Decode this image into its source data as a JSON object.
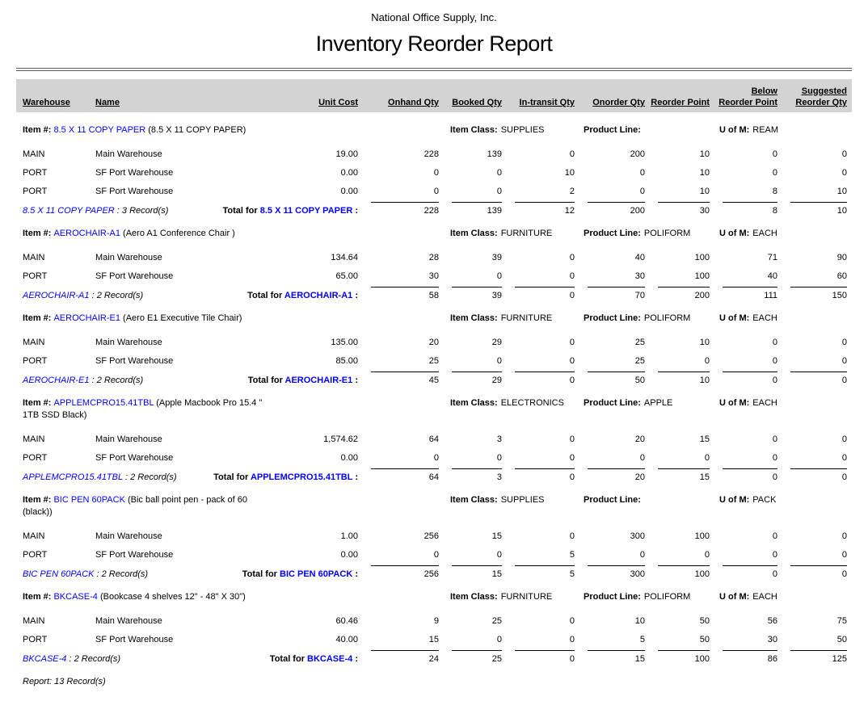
{
  "page": {
    "company": "National Office Supply, Inc.",
    "title": "Inventory Reorder Report",
    "footer": "Report: 13 Record(s)"
  },
  "labels": {
    "item": "Item #:",
    "item_class": "Item Class:",
    "product_line": "Product Line:",
    "uom": "U of M:",
    "total_prefix": "Total for ",
    "total_suffix": " :"
  },
  "colors": {
    "item_code_blue": "#0000FF",
    "header_band_gray": "#d3d3d3"
  },
  "columns": {
    "warehouse": "Warehouse",
    "name": "Name",
    "unit_cost": "Unit Cost",
    "onhand": "Onhand Qty",
    "booked": "Booked Qty",
    "intransit": "In-transit Qty",
    "onorder": "Onorder Qty",
    "reorder": "Reorder Point",
    "below1": "Below",
    "below2": "Reorder Point",
    "suggested1": "Suggested",
    "suggested2": "Reorder Qty"
  },
  "groups": [
    {
      "code": "8.5 X 11 COPY PAPER",
      "desc1": " (8.5 X 11 COPY PAPER)",
      "desc2": "",
      "item_class": "SUPPLIES",
      "product_line": "",
      "uom": "REAM",
      "rows": [
        {
          "wh": "MAIN",
          "name": "Main Warehouse",
          "cost": "19.00",
          "c": [
            "228",
            "139",
            "0",
            "200",
            "10",
            "0",
            "0"
          ]
        },
        {
          "wh": "PORT",
          "name": "SF Port Warehouse",
          "cost": "0.00",
          "c": [
            "0",
            "0",
            "10",
            "0",
            "10",
            "0",
            "0"
          ]
        },
        {
          "wh": "PORT",
          "name": "SF Port Warehouse",
          "cost": "0.00",
          "c": [
            "0",
            "0",
            "2",
            "0",
            "10",
            "8",
            "10"
          ]
        }
      ],
      "records": " : 3 Record(s)",
      "totals": [
        "228",
        "139",
        "12",
        "200",
        "30",
        "8",
        "10"
      ]
    },
    {
      "code": "AEROCHAIR-A1",
      "desc1": " (Aero A1 Conference Chair )",
      "desc2": "",
      "item_class": "FURNITURE",
      "product_line": "POLIFORM",
      "uom": "EACH",
      "rows": [
        {
          "wh": "MAIN",
          "name": "Main Warehouse",
          "cost": "134.64",
          "c": [
            "28",
            "39",
            "0",
            "40",
            "100",
            "71",
            "90"
          ]
        },
        {
          "wh": "PORT",
          "name": "SF Port Warehouse",
          "cost": "65.00",
          "c": [
            "30",
            "0",
            "0",
            "30",
            "100",
            "40",
            "60"
          ]
        }
      ],
      "records": " : 2 Record(s)",
      "totals": [
        "58",
        "39",
        "0",
        "70",
        "200",
        "111",
        "150"
      ]
    },
    {
      "code": "AEROCHAIR-E1",
      "desc1": " (Aero E1 Executive Tile Chair)",
      "desc2": "",
      "item_class": "FURNITURE",
      "product_line": "POLIFORM",
      "uom": "EACH",
      "rows": [
        {
          "wh": "MAIN",
          "name": "Main Warehouse",
          "cost": "135.00",
          "c": [
            "20",
            "29",
            "0",
            "25",
            "10",
            "0",
            "0"
          ]
        },
        {
          "wh": "PORT",
          "name": "SF Port Warehouse",
          "cost": "85.00",
          "c": [
            "25",
            "0",
            "0",
            "25",
            "0",
            "0",
            "0"
          ]
        }
      ],
      "records": " : 2 Record(s)",
      "totals": [
        "45",
        "29",
        "0",
        "50",
        "10",
        "0",
        "0"
      ]
    },
    {
      "code": "APPLEMCPRO15.41TBL",
      "desc1": " (Apple Macbook Pro 15.4 \"",
      "desc2": "1TB SSD Black)",
      "item_class": "ELECTRONICS",
      "product_line": "APPLE",
      "uom": "EACH",
      "rows": [
        {
          "wh": "MAIN",
          "name": "Main Warehouse",
          "cost": "1,574.62",
          "c": [
            "64",
            "3",
            "0",
            "20",
            "15",
            "0",
            "0"
          ]
        },
        {
          "wh": "PORT",
          "name": "SF Port Warehouse",
          "cost": "0.00",
          "c": [
            "0",
            "0",
            "0",
            "0",
            "0",
            "0",
            "0"
          ]
        }
      ],
      "records": " : 2 Record(s)",
      "totals": [
        "64",
        "3",
        "0",
        "20",
        "15",
        "0",
        "0"
      ]
    },
    {
      "code": "BIC PEN 60PACK",
      "desc1": " (Bic ball point pen - pack of 60",
      "desc2": "(black))",
      "item_class": "SUPPLIES",
      "product_line": "",
      "uom": "PACK",
      "rows": [
        {
          "wh": "MAIN",
          "name": "Main Warehouse",
          "cost": "1.00",
          "c": [
            "256",
            "15",
            "0",
            "300",
            "100",
            "0",
            "0"
          ]
        },
        {
          "wh": "PORT",
          "name": "SF Port Warehouse",
          "cost": "0.00",
          "c": [
            "0",
            "0",
            "5",
            "0",
            "0",
            "0",
            "0"
          ]
        }
      ],
      "records": " : 2 Record(s)",
      "totals": [
        "256",
        "15",
        "5",
        "300",
        "100",
        "0",
        "0"
      ]
    },
    {
      "code": "BKCASE-4",
      "desc1": " (Bookcase 4 shelves 12\" - 48\" X 30\")",
      "desc2": "",
      "item_class": "FURNITURE",
      "product_line": "POLIFORM",
      "uom": "EACH",
      "rows": [
        {
          "wh": "MAIN",
          "name": "Main Warehouse",
          "cost": "60.46",
          "c": [
            "9",
            "25",
            "0",
            "10",
            "50",
            "56",
            "75"
          ]
        },
        {
          "wh": "PORT",
          "name": "SF Port Warehouse",
          "cost": "40.00",
          "c": [
            "15",
            "0",
            "0",
            "5",
            "50",
            "30",
            "50"
          ]
        }
      ],
      "records": " : 2 Record(s)",
      "totals": [
        "24",
        "25",
        "0",
        "15",
        "100",
        "86",
        "125"
      ]
    }
  ]
}
